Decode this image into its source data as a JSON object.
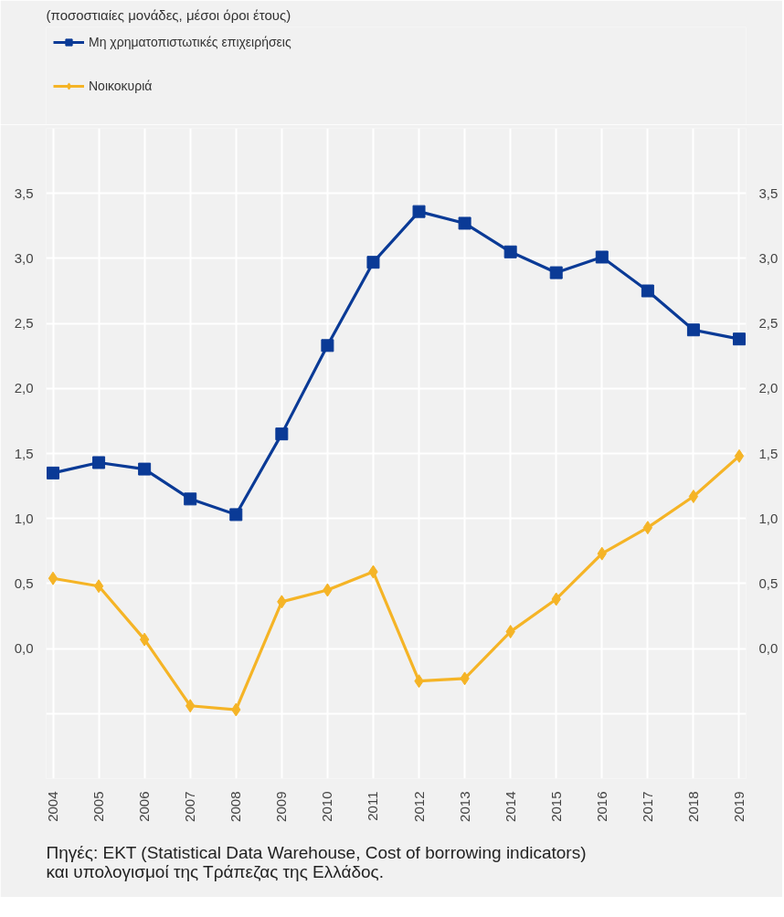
{
  "chart_data": {
    "type": "line",
    "subtitle": "(ποσοστιαίες μονάδες, μέσοι όροι έτους)",
    "categories": [
      "2004",
      "2005",
      "2006",
      "2007",
      "2008",
      "2009",
      "2010",
      "2011",
      "2012",
      "2013",
      "2014",
      "2015",
      "2016",
      "2017",
      "2018",
      "2019"
    ],
    "series": [
      {
        "name": "Μη χρηματοπιστωτικές επιχειρήσεις",
        "color": "#0a3a96",
        "marker": "square",
        "values": [
          1.35,
          1.43,
          1.38,
          1.15,
          1.03,
          1.65,
          2.33,
          2.97,
          3.36,
          3.27,
          3.05,
          2.89,
          3.01,
          2.75,
          2.45,
          2.38
        ]
      },
      {
        "name": "Νοικοκυριά",
        "color": "#f5b426",
        "marker": "diamond",
        "values": [
          0.54,
          0.48,
          0.07,
          -0.44,
          -0.47,
          0.36,
          0.45,
          0.59,
          -0.25,
          -0.23,
          0.13,
          0.38,
          0.73,
          0.93,
          1.17,
          1.48
        ]
      }
    ],
    "ylim": [
      -1.0,
      4.0
    ],
    "yticks": [
      {
        "value": -0.5,
        "label": null
      },
      {
        "value": 0,
        "label": "0,0"
      },
      {
        "value": 0.5,
        "label": "0,5"
      },
      {
        "value": 1.0,
        "label": "1,0"
      },
      {
        "value": 1.5,
        "label": "1,5"
      },
      {
        "value": 2.0,
        "label": "2,0"
      },
      {
        "value": 2.5,
        "label": "2,5"
      },
      {
        "value": 3.0,
        "label": "3,0"
      },
      {
        "value": 3.5,
        "label": "3,5"
      },
      {
        "value": 4.0,
        "label": null
      }
    ],
    "y2lim": [
      -1.0,
      4.0
    ],
    "y2ticks": [
      {
        "value": -0.5,
        "label": null
      },
      {
        "value": 0,
        "label": "0,0"
      },
      {
        "value": 0.5,
        "label": "0,5"
      },
      {
        "value": 1.0,
        "label": "1,0"
      },
      {
        "value": 1.5,
        "label": "1,5"
      },
      {
        "value": 2.0,
        "label": "2,0"
      },
      {
        "value": 2.5,
        "label": "2,5"
      },
      {
        "value": 3.0,
        "label": "3,0"
      },
      {
        "value": 3.5,
        "label": "3,5"
      },
      {
        "value": 4.0,
        "label": null
      }
    ],
    "grid": true,
    "legend": "top left",
    "line_style": "solid",
    "annotations": [
      "Πηγές: ΕΚΤ (Statistical Data Warehouse, Cost of borrowing indicators) και υπολογισμοί της Τράπεζας της Ελλάδος."
    ]
  }
}
